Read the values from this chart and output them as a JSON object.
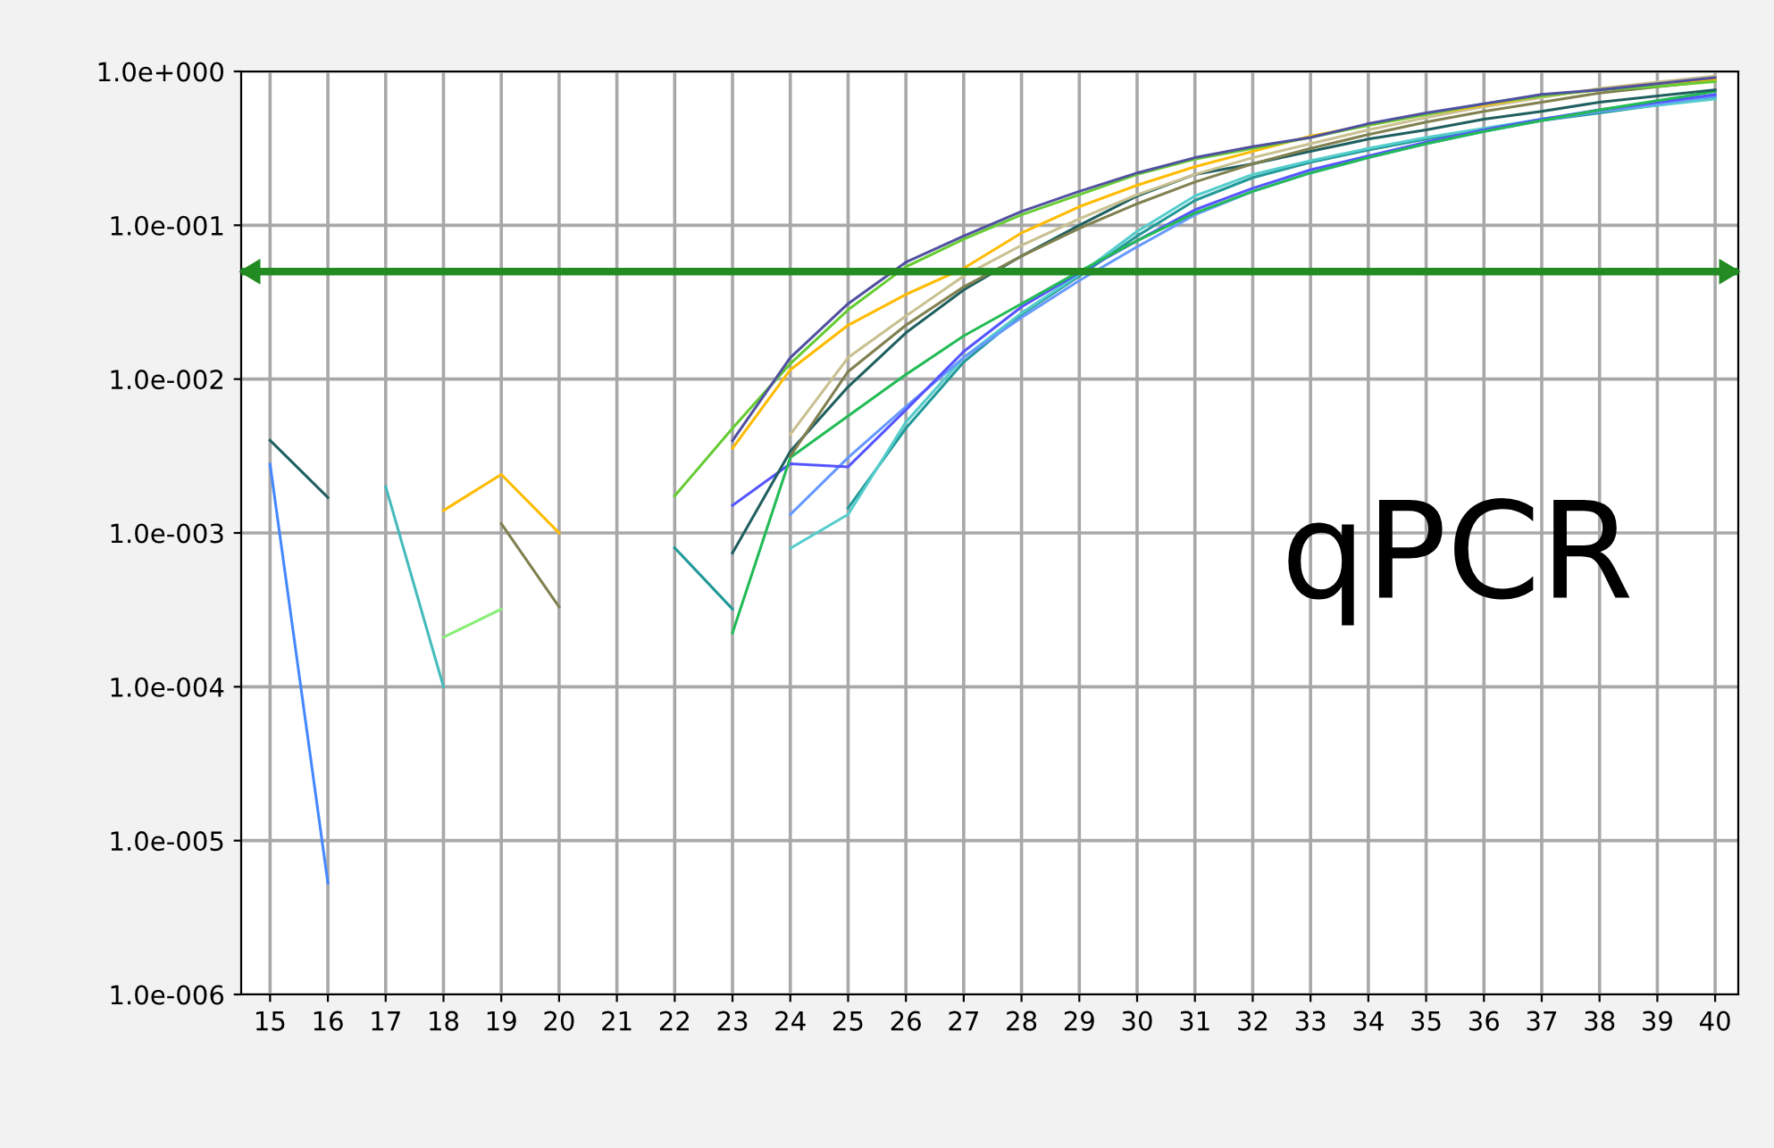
{
  "chart_data": {
    "type": "line",
    "xlim": [
      14.5,
      40.4
    ],
    "xticks": [
      15,
      16,
      17,
      18,
      19,
      20,
      21,
      22,
      23,
      24,
      25,
      26,
      27,
      28,
      29,
      30,
      31,
      32,
      33,
      34,
      35,
      36,
      37,
      38,
      39,
      40
    ],
    "ylim": [
      1e-06,
      1
    ],
    "log": true,
    "yticks": [
      {
        "value": 1,
        "label": "1.0e+000"
      },
      {
        "value": 0.1,
        "label": "1.0e-001"
      },
      {
        "value": 0.01,
        "label": "1.0e-002"
      },
      {
        "value": 0.001,
        "label": "1.0e-003"
      },
      {
        "value": 0.0001,
        "label": "1.0e-004"
      },
      {
        "value": 1e-05,
        "label": "1.0e-005"
      },
      {
        "value": 1e-06,
        "label": "1.0e-006"
      }
    ],
    "grid": true,
    "marker": "none",
    "line_style": "solid",
    "ref_lines": [
      {
        "axis": "y",
        "value": 0.05,
        "color": "#228b22"
      }
    ],
    "annotations": [
      "qPCR"
    ],
    "series": [
      {
        "color": "#5050a0",
        "x": [
          23,
          24,
          25,
          26,
          27,
          28,
          29,
          30,
          31,
          32,
          33,
          34,
          35,
          36,
          37,
          38,
          39,
          40
        ],
        "values": [
          0.00398,
          0.0138,
          0.0309,
          0.0575,
          0.0851,
          0.123,
          0.166,
          0.219,
          0.275,
          0.324,
          0.372,
          0.457,
          0.537,
          0.617,
          0.708,
          0.759,
          0.832,
          0.912
        ]
      },
      {
        "color": "#66cc33",
        "x": [
          22,
          23,
          24,
          25,
          26,
          27,
          28,
          29,
          30,
          31,
          32,
          33,
          34,
          35,
          36,
          37,
          38,
          39,
          40
        ],
        "values": [
          0.00174,
          0.00479,
          0.0126,
          0.0282,
          0.0537,
          0.0813,
          0.117,
          0.158,
          0.214,
          0.269,
          0.316,
          0.372,
          0.447,
          0.525,
          0.617,
          0.692,
          0.759,
          0.8,
          0.86
        ]
      },
      {
        "color": "#ffbb00",
        "x": [
          23,
          24,
          25,
          26,
          27,
          28,
          29,
          30,
          31,
          32,
          33,
          34,
          35,
          36,
          37,
          38,
          39,
          40
        ],
        "values": [
          0.00355,
          0.0115,
          0.0224,
          0.0355,
          0.0525,
          0.0891,
          0.132,
          0.182,
          0.24,
          0.302,
          0.38,
          0.447,
          0.525,
          0.603,
          0.692,
          0.759,
          0.832,
          0.891
        ]
      },
      {
        "color": "#c8c090",
        "x": [
          24,
          25,
          26,
          27,
          28,
          29,
          30,
          31,
          32,
          33,
          34,
          35,
          36,
          37,
          38,
          39,
          40
        ],
        "values": [
          0.00437,
          0.0138,
          0.0257,
          0.0468,
          0.0741,
          0.11,
          0.158,
          0.214,
          0.275,
          0.339,
          0.417,
          0.501,
          0.589,
          0.676,
          0.776,
          0.851,
          0.933
        ]
      },
      {
        "color": "#808050",
        "x": [
          24,
          25,
          26,
          27,
          28,
          29,
          30,
          31,
          32,
          33,
          34,
          35,
          36,
          37,
          38,
          39,
          40
        ],
        "values": [
          0.00316,
          0.0112,
          0.0224,
          0.0398,
          0.0631,
          0.0955,
          0.138,
          0.191,
          0.251,
          0.316,
          0.389,
          0.468,
          0.55,
          0.631,
          0.724,
          0.794,
          0.871
        ]
      },
      {
        "color": "#1f5f5f",
        "x": [
          23,
          24,
          25,
          26,
          27,
          28,
          29,
          30,
          31,
          32,
          33,
          34,
          35,
          36,
          37,
          38,
          39,
          40
        ],
        "values": [
          0.000741,
          0.00339,
          0.00891,
          0.02,
          0.038,
          0.0631,
          0.1,
          0.155,
          0.214,
          0.251,
          0.302,
          0.363,
          0.417,
          0.49,
          0.55,
          0.631,
          0.692,
          0.759
        ]
      },
      {
        "color": "#22bb55",
        "x": [
          23,
          24,
          25,
          26,
          27,
          28,
          29,
          30,
          31,
          32,
          33,
          34,
          35,
          36,
          37,
          38,
          39,
          40
        ],
        "values": [
          0.000224,
          0.00309,
          0.00575,
          0.0107,
          0.0191,
          0.0309,
          0.0501,
          0.0794,
          0.12,
          0.166,
          0.219,
          0.275,
          0.339,
          0.407,
          0.479,
          0.562,
          0.646,
          0.741
        ]
      },
      {
        "color": "#5555ff",
        "x": [
          23,
          24,
          25,
          26,
          27,
          28,
          29,
          30,
          31,
          32,
          33,
          34,
          35,
          36,
          37,
          38,
          39,
          40
        ],
        "values": [
          0.00151,
          0.00282,
          0.00269,
          0.00631,
          0.0151,
          0.0295,
          0.049,
          0.0794,
          0.126,
          0.174,
          0.229,
          0.282,
          0.347,
          0.417,
          0.49,
          0.562,
          0.631,
          0.708
        ]
      },
      {
        "color": "#6699ff",
        "x": [
          24,
          25,
          26,
          27,
          28,
          29,
          30,
          31,
          32,
          33,
          34,
          35,
          36,
          37,
          38,
          39,
          40
        ],
        "values": [
          0.00132,
          0.00309,
          0.00661,
          0.0138,
          0.0251,
          0.0437,
          0.0724,
          0.117,
          0.166,
          0.219,
          0.275,
          0.339,
          0.407,
          0.479,
          0.55,
          0.617,
          0.692
        ]
      },
      {
        "color": "#55cccc",
        "x": [
          24,
          25,
          26,
          27,
          28,
          29,
          30,
          31,
          32,
          33,
          34,
          35,
          36,
          37,
          38,
          39,
          40
        ],
        "values": [
          0.000794,
          0.00132,
          0.00525,
          0.0138,
          0.0269,
          0.0479,
          0.0912,
          0.155,
          0.214,
          0.263,
          0.316,
          0.372,
          0.427,
          0.49,
          0.55,
          0.603,
          0.661
        ]
      },
      {
        "color": "#229999",
        "x": [
          25,
          26,
          27,
          28,
          29,
          30,
          31,
          32,
          33,
          34,
          35,
          36,
          37,
          38,
          39,
          40
        ],
        "values": [
          0.00145,
          0.00479,
          0.0129,
          0.0263,
          0.0468,
          0.0851,
          0.145,
          0.204,
          0.257,
          0.309,
          0.363,
          0.417,
          0.479,
          0.537,
          0.603,
          0.676
        ]
      },
      {
        "color": "#4488ff",
        "x": [
          15,
          16
        ],
        "values": [
          0.0028,
          5.3e-06
        ]
      },
      {
        "color": "#1f5f5f",
        "x": [
          15,
          16
        ],
        "values": [
          0.004,
          0.0017
        ]
      },
      {
        "color": "#44bbbb",
        "x": [
          17,
          18
        ],
        "values": [
          0.002,
          0.0001
        ]
      },
      {
        "color": "#ffbb00",
        "x": [
          18,
          19,
          20
        ],
        "values": [
          0.0014,
          0.0024,
          0.001
        ]
      },
      {
        "color": "#88ee77",
        "x": [
          18,
          19
        ],
        "values": [
          0.00021,
          0.00032
        ]
      },
      {
        "color": "#808050",
        "x": [
          19,
          20
        ],
        "values": [
          0.00115,
          0.00033
        ]
      },
      {
        "color": "#229999",
        "x": [
          22,
          23
        ],
        "values": [
          0.0008,
          0.00032
        ]
      }
    ]
  }
}
